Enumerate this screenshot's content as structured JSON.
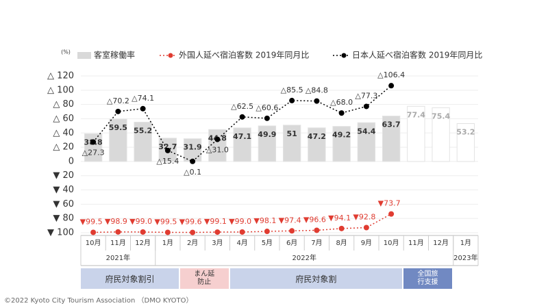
{
  "chart_data": {
    "type": "combo",
    "unit": "(%)",
    "category_groups": [
      {
        "label": "2021年",
        "categories": [
          "10月",
          "11月",
          "12月"
        ]
      },
      {
        "label": "2022年",
        "categories": [
          "1月",
          "2月",
          "3月",
          "4月",
          "5月",
          "6月",
          "7月",
          "8月",
          "9月",
          "10月",
          "11月",
          "12月"
        ]
      },
      {
        "label": "2023年",
        "categories": [
          "1月"
        ]
      }
    ],
    "ylim": [
      -100,
      120
    ],
    "yticks": [
      {
        "value": 120,
        "label": "△ 120"
      },
      {
        "value": 100,
        "label": "△ 100"
      },
      {
        "value": 80,
        "label": "△ 80"
      },
      {
        "value": 60,
        "label": "△ 60"
      },
      {
        "value": 40,
        "label": "△ 40"
      },
      {
        "value": 20,
        "label": "△ 20"
      },
      0,
      {
        "value": -20,
        "label": "▼ 20"
      },
      {
        "value": -40,
        "label": "▼ 40"
      },
      {
        "value": -60,
        "label": "▼ 60"
      },
      {
        "value": -80,
        "label": "▼ 80"
      },
      {
        "value": -100,
        "label": "▼ 100"
      }
    ],
    "grid": true,
    "series": [
      {
        "name": "客室稼働率",
        "type": "bar",
        "color": "#d9d9d9",
        "colors": [
          "#d9d9d9",
          "#d9d9d9",
          "#d9d9d9",
          "#d9d9d9",
          "#d9d9d9",
          "#d9d9d9",
          "#d9d9d9",
          "#d9d9d9",
          "#d9d9d9",
          "#d9d9d9",
          "#d9d9d9",
          "#d9d9d9",
          "#d9d9d9",
          "#ffffff",
          "#ffffff",
          "#ffffff"
        ],
        "values": [
          38.8,
          59.5,
          55.2,
          32.7,
          31.9,
          44.8,
          47.1,
          49.9,
          51.0,
          47.2,
          49.2,
          54.4,
          63.7,
          77.4,
          75.4,
          53.2
        ]
      },
      {
        "name": "外国人延べ宿泊客数 2019年同月比",
        "type": "line",
        "color": "#e03c31",
        "values": [
          -99.5,
          -98.9,
          -99.0,
          -99.5,
          -99.6,
          -99.1,
          -99.0,
          -98.1,
          -97.4,
          -96.6,
          -94.1,
          -92.8,
          -73.7,
          null,
          null,
          null
        ],
        "value_labels": [
          "▼99.5",
          "▼98.9",
          "▼99.0",
          "▼99.5",
          "▼99.6",
          "▼99.1",
          "▼99.0",
          "▼98.1",
          "▼97.4",
          "▼96.6",
          "▼94.1",
          "▼92.8",
          "▼73.7",
          null,
          null,
          null
        ]
      },
      {
        "name": "日本人延べ宿泊客数 2019年同月比",
        "type": "line",
        "color": "#000000",
        "values": [
          27.3,
          70.2,
          74.1,
          15.4,
          0.1,
          31.0,
          62.5,
          60.6,
          85.5,
          84.8,
          68.0,
          77.3,
          106.4,
          null,
          null,
          null
        ],
        "value_labels": [
          "△27.3",
          "△70.2",
          "△74.1",
          "△15.4",
          "△0.1",
          "△31.0",
          "△62.5",
          "△60.6",
          "△85.5",
          "△84.8",
          "△68.0",
          "△77.3",
          "△106.4",
          null,
          null,
          null
        ]
      }
    ],
    "campaigns": [
      {
        "label": "府民対象割引",
        "color": "#c9d3ea",
        "text_color": "#333333"
      },
      {
        "label": "まん延防止",
        "color": "#f6cfcf",
        "text_color": "#333333"
      },
      {
        "label": "府民対象割",
        "color": "#c9d3ea",
        "text_color": "#333333"
      },
      {
        "label": "全国旅行支援",
        "color": "#7189c2",
        "text_color": "#ffffff"
      }
    ],
    "footer": "©2022 Kyoto City Tourism Association （DMO KYOTO）"
  }
}
